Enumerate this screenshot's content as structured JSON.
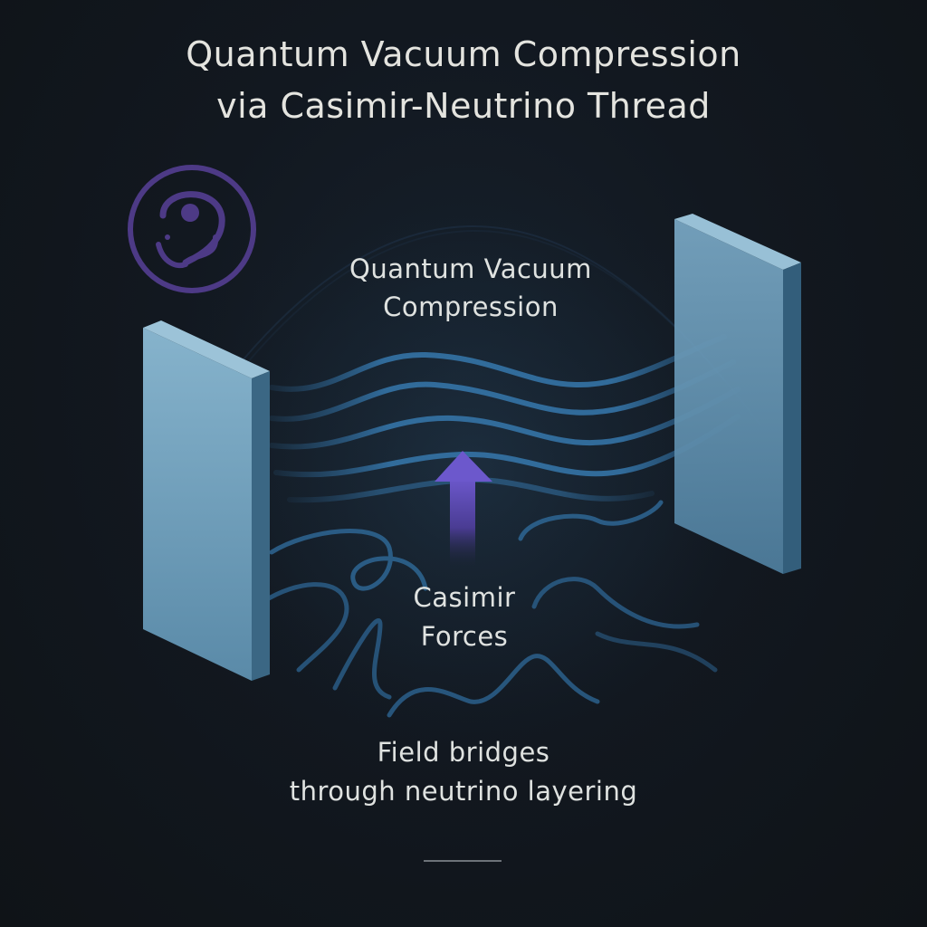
{
  "title": {
    "line1": "Quantum Vacuum Compression",
    "line2": "via Casimir-Neutrino Thread"
  },
  "labels": {
    "vacuum_line1": "Quantum Vacuum",
    "vacuum_line2": "Compression",
    "casimir_line1": "Casimir",
    "casimir_line2": "Forces",
    "bridge_line1": "Field bridges",
    "bridge_line2": "through neutrino layering"
  },
  "icons": {
    "emblem": "circular-swirl-emblem-icon",
    "arrow": "up-arrow-icon"
  },
  "colors": {
    "background": "#101419",
    "plate": "#6f9fbc",
    "wave": "#2f6a9a",
    "emblem": "#4d3a86",
    "arrow": "#6a55c8",
    "text": "#e3e4df"
  }
}
